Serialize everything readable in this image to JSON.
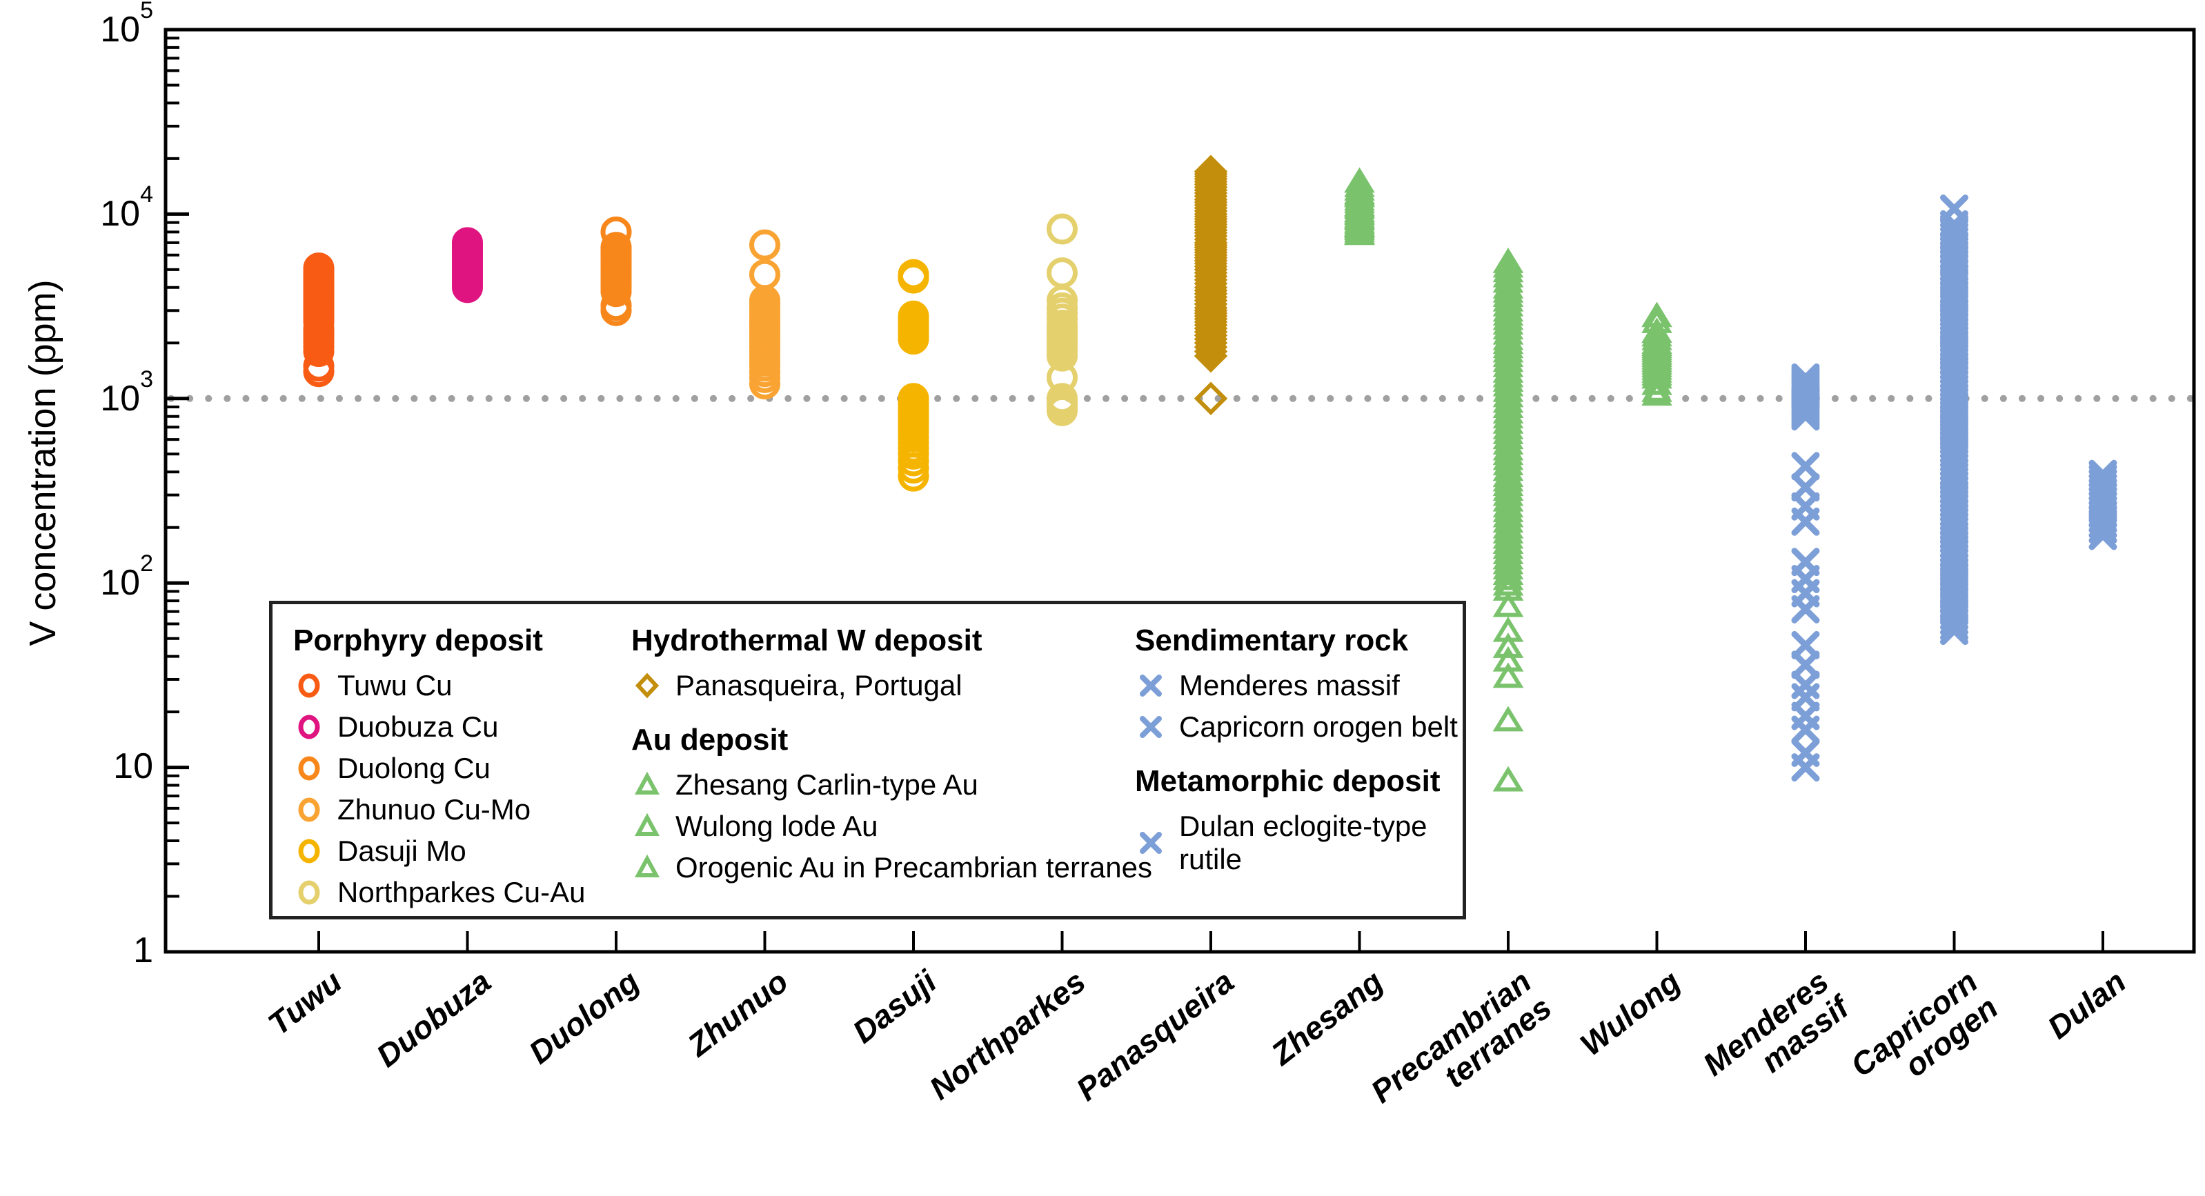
{
  "figure": {
    "background": "#ffffff",
    "frame_color": "#000000"
  },
  "y_axis": {
    "label": "V concentration (ppm)",
    "ticks": [
      {
        "base": "10",
        "exp": "5",
        "value": 100000
      },
      {
        "base": "10",
        "exp": "4",
        "value": 10000
      },
      {
        "base": "10",
        "exp": "3",
        "value": 1000
      },
      {
        "base": "10",
        "exp": "2",
        "value": 100
      },
      {
        "base": "10",
        "exp": "",
        "value": 10
      },
      {
        "base": "1",
        "exp": "",
        "value": 1
      }
    ]
  },
  "chart_data": {
    "type": "scatter",
    "yscale": "log",
    "ylim": [
      1,
      100000
    ],
    "ylabel": "V concentration (ppm)",
    "xlabel": "",
    "grid": false,
    "legend_position": "inside bottom-left",
    "reference_line": {
      "value": 1000,
      "style": "dotted",
      "color": "#A0A0A0"
    },
    "categories": [
      "Tuwu",
      "Duobuza",
      "Duolong",
      "Zhunuo",
      "Dasuji",
      "Northparkes",
      "Panasqueira",
      "Zhesang",
      "Precambrian\nterranes",
      "Wulong",
      "Menderes\nmassif",
      "Capricorn\norogen",
      "Dulan"
    ],
    "series": [
      {
        "name": "Tuwu Cu",
        "group": "Porphyry deposit",
        "marker": "circle",
        "color": "#F85B13",
        "category_index": 0,
        "values": [
          5100,
          5000,
          4900,
          4800,
          4700,
          4600,
          4500,
          4400,
          4300,
          4200,
          4100,
          4000,
          3900,
          3800,
          3700,
          3600,
          3500,
          3400,
          3300,
          3200,
          3100,
          3000,
          2900,
          2800,
          2700,
          2600,
          2400,
          2300,
          2200,
          2100,
          2000,
          1900,
          1800,
          1500,
          1400
        ]
      },
      {
        "name": "Duobuza Cu",
        "group": "Porphyry deposit",
        "marker": "circle",
        "color": "#E01480",
        "category_index": 1,
        "values": [
          7000,
          6800,
          6600,
          6400,
          6200,
          6000,
          5800,
          5600,
          5400,
          5200,
          5000,
          4800,
          4600,
          4400,
          4200,
          4000
        ]
      },
      {
        "name": "Duolong Cu",
        "group": "Porphyry deposit",
        "marker": "circle",
        "color": "#F8871B",
        "category_index": 2,
        "values": [
          8000,
          6600,
          6400,
          6200,
          6000,
          5800,
          5600,
          5400,
          5200,
          5000,
          4800,
          4600,
          4400,
          4200,
          4000,
          3800,
          3200,
          3000
        ]
      },
      {
        "name": "Zhunuo Cu-Mo",
        "group": "Porphyry deposit",
        "marker": "circle",
        "color": "#F9A333",
        "category_index": 3,
        "values": [
          6800,
          4700,
          3400,
          3250,
          3100,
          2950,
          2800,
          2700,
          2600,
          2500,
          2400,
          2300,
          2200,
          2100,
          2000,
          1900,
          1800,
          1700,
          1600,
          1500,
          1400,
          1300,
          1200
        ]
      },
      {
        "name": "Dasuji Mo",
        "group": "Porphyry deposit",
        "marker": "circle",
        "color": "#F5B400",
        "category_index": 4,
        "values": [
          4700,
          4500,
          2800,
          2700,
          2600,
          2500,
          2400,
          2300,
          2200,
          2100,
          1000,
          950,
          900,
          860,
          820,
          780,
          740,
          700,
          660,
          620,
          580,
          540,
          500,
          460,
          420,
          380
        ]
      },
      {
        "name": "Northparkes Cu-Au",
        "group": "Porphyry deposit",
        "marker": "circle",
        "color": "#E5D06E",
        "category_index": 5,
        "values": [
          8300,
          4800,
          3400,
          3100,
          2900,
          2700,
          2500,
          2400,
          2300,
          2200,
          2100,
          2000,
          1900,
          1800,
          1700,
          1300,
          1000,
          950,
          900,
          860
        ]
      },
      {
        "name": "Panasqueira, Portugal",
        "group": "Hydrothermal W deposit",
        "marker": "diamond",
        "color": "#C28E0C",
        "category_index": 6,
        "values": [
          17000,
          16500,
          16000,
          15500,
          15000,
          14500,
          14000,
          13500,
          13000,
          12500,
          12000,
          11600,
          11200,
          10800,
          10400,
          10000,
          9700,
          9400,
          9100,
          8800,
          8500,
          8200,
          7900,
          7600,
          7300,
          7000,
          6800,
          6600,
          6400,
          6200,
          6000,
          5800,
          5600,
          5400,
          5200,
          5000,
          4800,
          4600,
          4400,
          4200,
          4000,
          3850,
          3700,
          3550,
          3400,
          3250,
          3100,
          3000,
          2900,
          2800,
          2700,
          2600,
          2500,
          2400,
          2300,
          2200,
          2100,
          2000,
          1900,
          1800,
          1700,
          1000
        ]
      },
      {
        "name": "Zhesang Carlin-type Au",
        "group": "Au deposit",
        "marker": "triangle",
        "color": "#7AC36C",
        "category_index": 7,
        "values": [
          15000,
          14200,
          13600,
          13000,
          12800,
          12500,
          12000,
          11600,
          11200,
          11000,
          10800,
          10400,
          10200,
          10000,
          9700,
          9500,
          9400,
          9100,
          8900,
          8700,
          8600,
          8500,
          8300,
          8100,
          7900,
          7800
        ]
      },
      {
        "name": "Orogenic Au in Precambrian terranes",
        "group": "Au deposit",
        "marker": "triangle",
        "color": "#7AC36C",
        "category_index": 8,
        "values": [
          5500,
          5200,
          4900,
          4600,
          4300,
          4000,
          3800,
          3600,
          3400,
          3200,
          3000,
          2850,
          2700,
          2550,
          2400,
          2250,
          2100,
          2000,
          1900,
          1800,
          1700,
          1600,
          1500,
          1400,
          1320,
          1250,
          1180,
          1100,
          1030,
          960,
          900,
          840,
          790,
          740,
          690,
          650,
          610,
          570,
          530,
          500,
          470,
          440,
          410,
          380,
          360,
          340,
          320,
          300,
          280,
          260,
          245,
          230,
          215,
          200,
          188,
          176,
          165,
          155,
          145,
          136,
          128,
          120,
          112,
          105,
          98,
          92,
          75,
          55,
          45,
          38,
          31,
          18,
          8.5
        ]
      },
      {
        "name": "Wulong lode Au",
        "group": "Au deposit",
        "marker": "triangle",
        "color": "#7AC36C",
        "category_index": 9,
        "values": [
          2800,
          2600,
          2300,
          2200,
          2100,
          2000,
          1950,
          1900,
          1850,
          1800,
          1750,
          1700,
          1650,
          1600,
          1550,
          1500,
          1450,
          1400,
          1350,
          1300,
          1200,
          1100,
          1050
        ]
      },
      {
        "name": "Menderes massif",
        "group": "Sendimentary rock",
        "marker": "x",
        "color": "#7D9FD7",
        "category_index": 10,
        "values": [
          1300,
          1260,
          1220,
          1180,
          1150,
          1120,
          1090,
          1060,
          1030,
          1000,
          975,
          950,
          925,
          900,
          875,
          850,
          825,
          800,
          430,
          330,
          260,
          215,
          130,
          105,
          88,
          72,
          46,
          36,
          28,
          24,
          19,
          16,
          12,
          10
        ]
      },
      {
        "name": "Capricorn orogen belt",
        "group": "Sendimentary rock",
        "marker": "x",
        "color": "#7D9FD7",
        "category_index": 11,
        "values": [
          10700,
          8800,
          8400,
          8000,
          7600,
          7200,
          6800,
          6400,
          6000,
          5700,
          5400,
          5100,
          4800,
          4500,
          4200,
          3900,
          3700,
          3500,
          3300,
          3100,
          2900,
          2750,
          2600,
          2450,
          2300,
          2200,
          2100,
          2000,
          1900,
          1800,
          1700,
          1600,
          1500,
          1420,
          1340,
          1270,
          1200,
          1140,
          1080,
          1020,
          970,
          920,
          870,
          830,
          790,
          750,
          710,
          680,
          650,
          620,
          590,
          560,
          530,
          500,
          475,
          450,
          425,
          400,
          380,
          360,
          340,
          320,
          300,
          285,
          270,
          255,
          240,
          228,
          216,
          204,
          193,
          182,
          172,
          162,
          153,
          145,
          137,
          130,
          122,
          115,
          108,
          102,
          96,
          90,
          85,
          80,
          75,
          70,
          66,
          62,
          58,
          55
        ]
      },
      {
        "name": "Dulan eclogite-type rutile",
        "group": "Metamorphic deposit",
        "marker": "x",
        "color": "#7D9FD7",
        "category_index": 12,
        "values": [
          390,
          370,
          350,
          330,
          312,
          296,
          280,
          265,
          250,
          236,
          222,
          208,
          195,
          180
        ]
      }
    ],
    "legend": {
      "groups": [
        {
          "title": "Porphyry deposit",
          "items": [
            {
              "label": "Tuwu Cu",
              "marker": "circle",
              "color": "#F85B13"
            },
            {
              "label": "Duobuza Cu",
              "marker": "circle",
              "color": "#E01480"
            },
            {
              "label": "Duolong Cu",
              "marker": "circle",
              "color": "#F8871B"
            },
            {
              "label": "Zhunuo Cu-Mo",
              "marker": "circle",
              "color": "#F9A333"
            },
            {
              "label": "Dasuji Mo",
              "marker": "circle",
              "color": "#F5B400"
            },
            {
              "label": "Northparkes Cu-Au",
              "marker": "circle",
              "color": "#E5D06E"
            }
          ]
        },
        {
          "title": "Hydrothermal W deposit",
          "items": [
            {
              "label": "Panasqueira, Portugal",
              "marker": "diamond",
              "color": "#C28E0C"
            }
          ]
        },
        {
          "title": "Au deposit",
          "items": [
            {
              "label": "Zhesang Carlin-type Au",
              "marker": "triangle",
              "color": "#7AC36C"
            },
            {
              "label": "Wulong lode Au",
              "marker": "triangle",
              "color": "#7AC36C"
            },
            {
              "label": "Orogenic Au in Precambrian terranes",
              "marker": "triangle",
              "color": "#7AC36C"
            }
          ]
        },
        {
          "title": "Sendimentary rock",
          "items": [
            {
              "label": "Menderes massif",
              "marker": "x",
              "color": "#7D9FD7"
            },
            {
              "label": "Capricorn orogen belt",
              "marker": "x",
              "color": "#7D9FD7"
            }
          ]
        },
        {
          "title": "Metamorphic deposit",
          "items": [
            {
              "label": "Dulan eclogite-type rutile",
              "marker": "x",
              "color": "#7D9FD7"
            }
          ]
        }
      ]
    }
  }
}
